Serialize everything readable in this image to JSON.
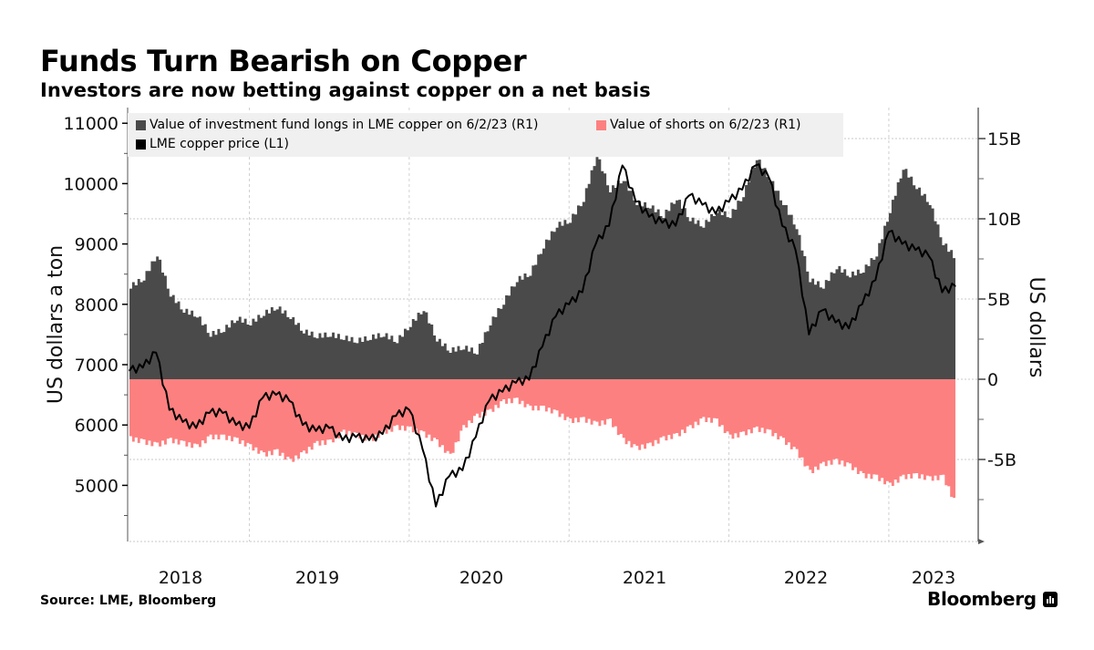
{
  "header": {
    "title": "Funds Turn Bearish on Copper",
    "subtitle": "Investors are now betting against copper on a net basis"
  },
  "footer": {
    "source": "Source: LME, Bloomberg",
    "brand": "Bloomberg"
  },
  "icons": {
    "brand_logo": "bloomberg-bar-chart-icon"
  },
  "chart_data": {
    "type": "area",
    "title": "Funds Turn Bearish on Copper",
    "subtitle": "Investors are now betting against copper on a net basis",
    "x_labels": [
      "2018",
      "2019",
      "2020",
      "2021",
      "2022",
      "2023"
    ],
    "x_range": [
      "2018-04",
      "2023-06"
    ],
    "left_axis": {
      "label": "US dollars a ton",
      "range": [
        4200,
        11000
      ],
      "ticks": [
        5000,
        6000,
        7000,
        8000,
        9000,
        10000,
        11000
      ]
    },
    "right_axis": {
      "label": "US dollars",
      "range": [
        -10,
        17
      ],
      "ticks": [
        -5,
        0,
        5,
        10,
        15
      ],
      "tick_labels": [
        "-5B",
        "0",
        "5B",
        "10B",
        "15B"
      ],
      "unit": "billion USD"
    },
    "grid": true,
    "legend_position": "top-left",
    "legend": [
      {
        "name": "Value of investment fund longs in LME copper on 6/2/23 (R1)",
        "color": "#4a4a4a",
        "axis": "right"
      },
      {
        "name": "Value of shorts on 6/2/23 (R1)",
        "color": "#fd8080",
        "axis": "right"
      },
      {
        "name": "LME copper price (L1)",
        "color": "#000000",
        "axis": "left"
      }
    ],
    "x": [
      "2018-04",
      "2018-05",
      "2018-06",
      "2018-07",
      "2018-08",
      "2018-09",
      "2018-10",
      "2018-11",
      "2018-12",
      "2019-01",
      "2019-02",
      "2019-03",
      "2019-04",
      "2019-05",
      "2019-06",
      "2019-07",
      "2019-08",
      "2019-09",
      "2019-10",
      "2019-11",
      "2019-12",
      "2020-01",
      "2020-02",
      "2020-03",
      "2020-04",
      "2020-05",
      "2020-06",
      "2020-07",
      "2020-08",
      "2020-09",
      "2020-10",
      "2020-11",
      "2020-12",
      "2021-01",
      "2021-02",
      "2021-03",
      "2021-04",
      "2021-05",
      "2021-06",
      "2021-07",
      "2021-08",
      "2021-09",
      "2021-10",
      "2021-11",
      "2021-12",
      "2022-01",
      "2022-02",
      "2022-03",
      "2022-04",
      "2022-05",
      "2022-06",
      "2022-07",
      "2022-08",
      "2022-09",
      "2022-10",
      "2022-11",
      "2022-12",
      "2023-01",
      "2023-02",
      "2023-03",
      "2023-04",
      "2023-05",
      "2023-06"
    ],
    "series": [
      {
        "name": "Value of investment fund longs in LME copper on 6/2/23 (R1)",
        "unit": "billion USD",
        "values": [
          5.8,
          6.3,
          7.8,
          5.3,
          4.3,
          4.0,
          2.8,
          3.1,
          3.8,
          3.5,
          4.1,
          4.5,
          3.9,
          3.0,
          2.7,
          2.8,
          2.6,
          2.4,
          2.6,
          2.8,
          2.4,
          3.4,
          4.4,
          2.5,
          1.8,
          2.0,
          1.7,
          3.5,
          4.8,
          6.2,
          6.6,
          8.3,
          9.6,
          9.9,
          11.2,
          14.0,
          11.8,
          12.5,
          11.0,
          10.8,
          10.2,
          11.3,
          10.0,
          9.6,
          10.5,
          10.2,
          11.5,
          13.8,
          12.5,
          11.0,
          9.5,
          6.2,
          5.8,
          7.0,
          6.5,
          6.8,
          7.8,
          10.5,
          13.2,
          12.0,
          11.0,
          8.5,
          7.5
        ]
      },
      {
        "name": "Value of shorts on 6/2/23 (R1)",
        "unit": "billion USD",
        "values": [
          -3.7,
          -3.9,
          -4.1,
          -3.8,
          -4.0,
          -4.2,
          -3.6,
          -3.6,
          -3.8,
          -4.2,
          -4.7,
          -4.5,
          -5.1,
          -4.6,
          -4.0,
          -3.9,
          -3.3,
          -3.5,
          -3.8,
          -3.3,
          -3.0,
          -3.1,
          -3.4,
          -3.9,
          -4.8,
          -3.0,
          -2.3,
          -2.0,
          -1.4,
          -1.3,
          -1.8,
          -1.8,
          -2.1,
          -2.6,
          -2.5,
          -2.8,
          -2.6,
          -3.8,
          -4.3,
          -4.1,
          -3.7,
          -3.5,
          -3.0,
          -2.5,
          -2.6,
          -3.6,
          -3.4,
          -3.1,
          -3.3,
          -3.8,
          -4.5,
          -5.8,
          -5.3,
          -5.1,
          -5.4,
          -6.0,
          -6.1,
          -6.6,
          -6.1,
          -6.0,
          -6.2,
          -6.1,
          -7.9
        ]
      },
      {
        "name": "LME copper price (L1)",
        "unit": "USD per ton",
        "values": [
          6900,
          6950,
          7200,
          6250,
          6050,
          5950,
          6200,
          6200,
          6000,
          5950,
          6450,
          6500,
          6400,
          6000,
          5900,
          5950,
          5750,
          5800,
          5750,
          5850,
          6150,
          6250,
          5600,
          4650,
          5150,
          5250,
          5800,
          6400,
          6550,
          6700,
          6750,
          7300,
          7800,
          8000,
          8200,
          9000,
          9300,
          10300,
          9700,
          9450,
          9350,
          9300,
          9800,
          9650,
          9500,
          9700,
          9900,
          10300,
          10100,
          9300,
          8900,
          7500,
          7900,
          7700,
          7600,
          8000,
          8400,
          9200,
          9000,
          8900,
          8800,
          8200,
          8300
        ]
      }
    ]
  }
}
